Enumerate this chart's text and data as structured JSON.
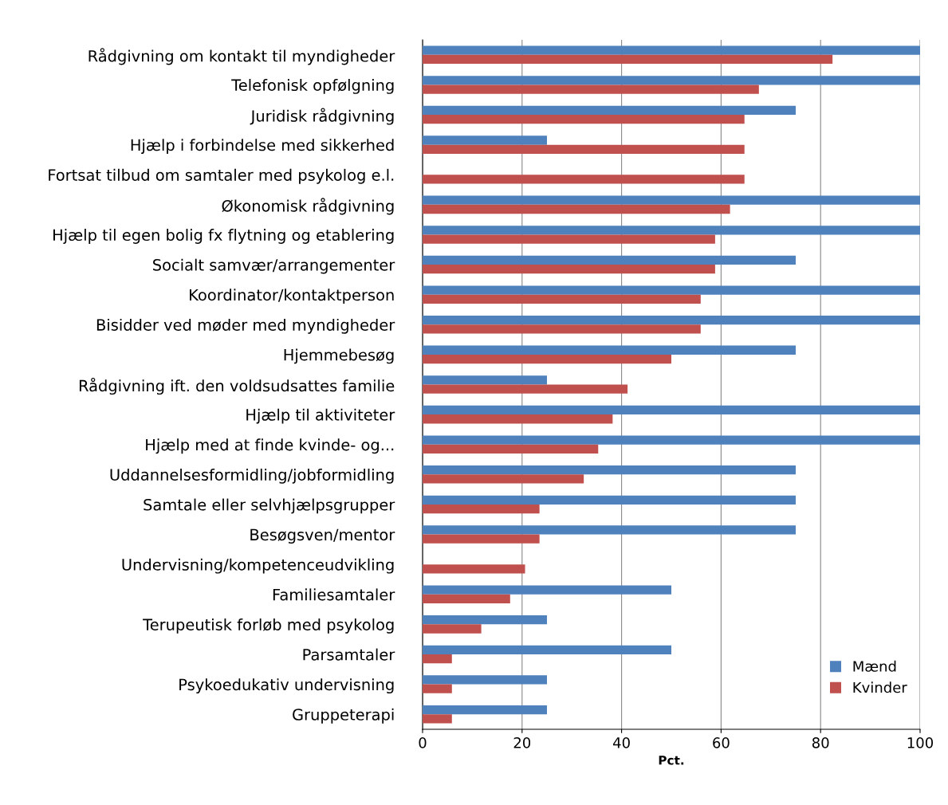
{
  "chart_data": {
    "type": "bar",
    "orientation": "horizontal",
    "xlabel": "Pct.",
    "categories": [
      "Rådgivning om kontakt til myndigheder",
      "Telefonisk opfølgning",
      "Juridisk rådgivning",
      "Hjælp i forbindelse med sikkerhed",
      "Fortsat tilbud om samtaler med psykolog e.l.",
      "Økonomisk rådgivning",
      "Hjælp til egen bolig fx flytning og etablering",
      "Socialt samvær/arrangementer",
      "Koordinator/kontaktperson",
      "Bisidder ved møder med myndigheder",
      "Hjemmebesøg",
      "Rådgivning ift. den voldsudsattes familie",
      "Hjælp til aktiviteter",
      "Hjælp med at finde kvinde- og...",
      "Uddannelsesformidling/jobformidling",
      "Samtale eller selvhjælpsgrupper",
      "Besøgsven/mentor",
      "Undervisning/kompetenceudvikling",
      "Familiesamtaler",
      "Terupeutisk forløb med psykolog",
      "Parsamtaler",
      "Psykoedukativ undervisning",
      "Gruppeterapi"
    ],
    "series": [
      {
        "name": "Mænd",
        "color": "#4f81bd",
        "values": [
          100,
          100,
          75,
          25,
          0,
          100,
          100,
          75,
          100,
          100,
          75,
          25,
          100,
          100,
          75,
          75,
          75,
          0,
          50,
          25,
          50,
          25,
          25
        ]
      },
      {
        "name": "Kvinder",
        "color": "#c0504d",
        "values": [
          82.4,
          67.6,
          64.7,
          64.7,
          64.7,
          61.8,
          58.8,
          58.8,
          55.9,
          55.9,
          50,
          41.2,
          38.2,
          35.3,
          32.4,
          23.5,
          23.5,
          20.6,
          17.6,
          11.8,
          5.9,
          5.9,
          5.9
        ]
      }
    ],
    "xlim": [
      0,
      100
    ],
    "xticks": [
      0,
      20,
      40,
      60,
      80,
      100
    ],
    "grid": "x",
    "legend": "bottom right"
  }
}
